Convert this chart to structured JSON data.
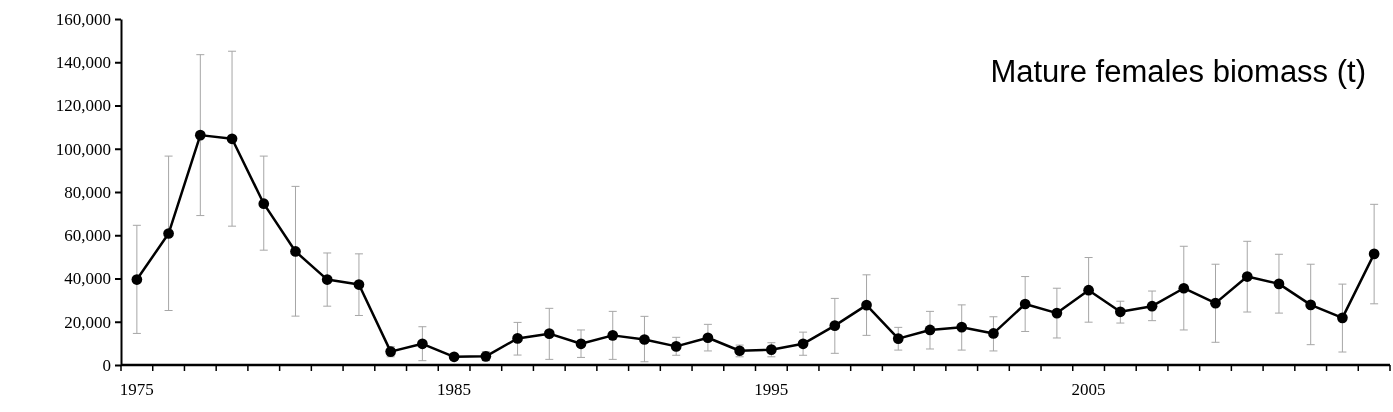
{
  "chart_data": {
    "type": "line",
    "title": "Mature females biomass (t)",
    "categories": [
      "1975",
      null,
      null,
      null,
      null,
      null,
      null,
      null,
      null,
      null,
      "1985",
      null,
      null,
      null,
      null,
      null,
      null,
      null,
      null,
      null,
      "1995",
      null,
      null,
      null,
      null,
      null,
      null,
      null,
      null,
      null,
      "2005",
      null,
      null,
      null,
      null,
      null,
      null,
      null,
      null,
      null
    ],
    "series": [
      {
        "color": "#000000",
        "values": [
          39500,
          60800,
          106300,
          104600,
          74600,
          52500,
          39500,
          37200,
          6200,
          9800,
          3800,
          4000,
          12300,
          14500,
          9800,
          13700,
          11800,
          8600,
          12600,
          6600,
          7100,
          9800,
          18200,
          27700,
          12200,
          16200,
          17500,
          14600,
          28200,
          24000,
          34600,
          24600,
          27200,
          35500,
          28600,
          40900,
          37500,
          27800,
          21800,
          51400
        ],
        "errors": [
          [
            14600,
            64600
          ],
          [
            25200,
            96600
          ],
          [
            69100,
            143500
          ],
          [
            64200,
            145100
          ],
          [
            53100,
            96600
          ],
          [
            22600,
            82600
          ],
          [
            27200,
            51800
          ],
          [
            22900,
            51400
          ],
          [
            3800,
            8500
          ],
          [
            2000,
            17700
          ],
          [
            2300,
            4500
          ],
          [
            2000,
            6200
          ],
          [
            4600,
            19700
          ],
          [
            2600,
            26200
          ],
          [
            3500,
            16200
          ],
          [
            2600,
            24800
          ],
          [
            1500,
            22500
          ],
          [
            4500,
            12800
          ],
          [
            6500,
            18800
          ],
          [
            3800,
            9200
          ],
          [
            3800,
            10300
          ],
          [
            4500,
            15200
          ],
          [
            5400,
            30800
          ],
          [
            13700,
            41700
          ],
          [
            6900,
            17400
          ],
          [
            7400,
            24800
          ],
          [
            6900,
            27800
          ],
          [
            6500,
            22300
          ],
          [
            15500,
            40900
          ],
          [
            12500,
            35500
          ],
          [
            19800,
            49700
          ],
          [
            19400,
            29500
          ],
          [
            20500,
            34200
          ],
          [
            16200,
            54900
          ],
          [
            10500,
            46600
          ],
          [
            24500,
            57200
          ],
          [
            24000,
            51200
          ],
          [
            9400,
            46600
          ],
          [
            6000,
            37400
          ],
          [
            28300,
            74300
          ]
        ]
      }
    ],
    "ylim": [
      0,
      160000
    ],
    "yticks": [
      {
        "value": 0,
        "label": "0"
      },
      {
        "value": 20000,
        "label": "20,000"
      },
      {
        "value": 40000,
        "label": "40,000"
      },
      {
        "value": 60000,
        "label": "60,000"
      },
      {
        "value": 80000,
        "label": "80,000"
      },
      {
        "value": 100000,
        "label": "100,000"
      },
      {
        "value": 120000,
        "label": "120,000"
      },
      {
        "value": 140000,
        "label": "140,000"
      },
      {
        "value": 160000,
        "label": "160,000"
      }
    ],
    "grid": false,
    "marker": "circle",
    "line_style": "solid"
  }
}
